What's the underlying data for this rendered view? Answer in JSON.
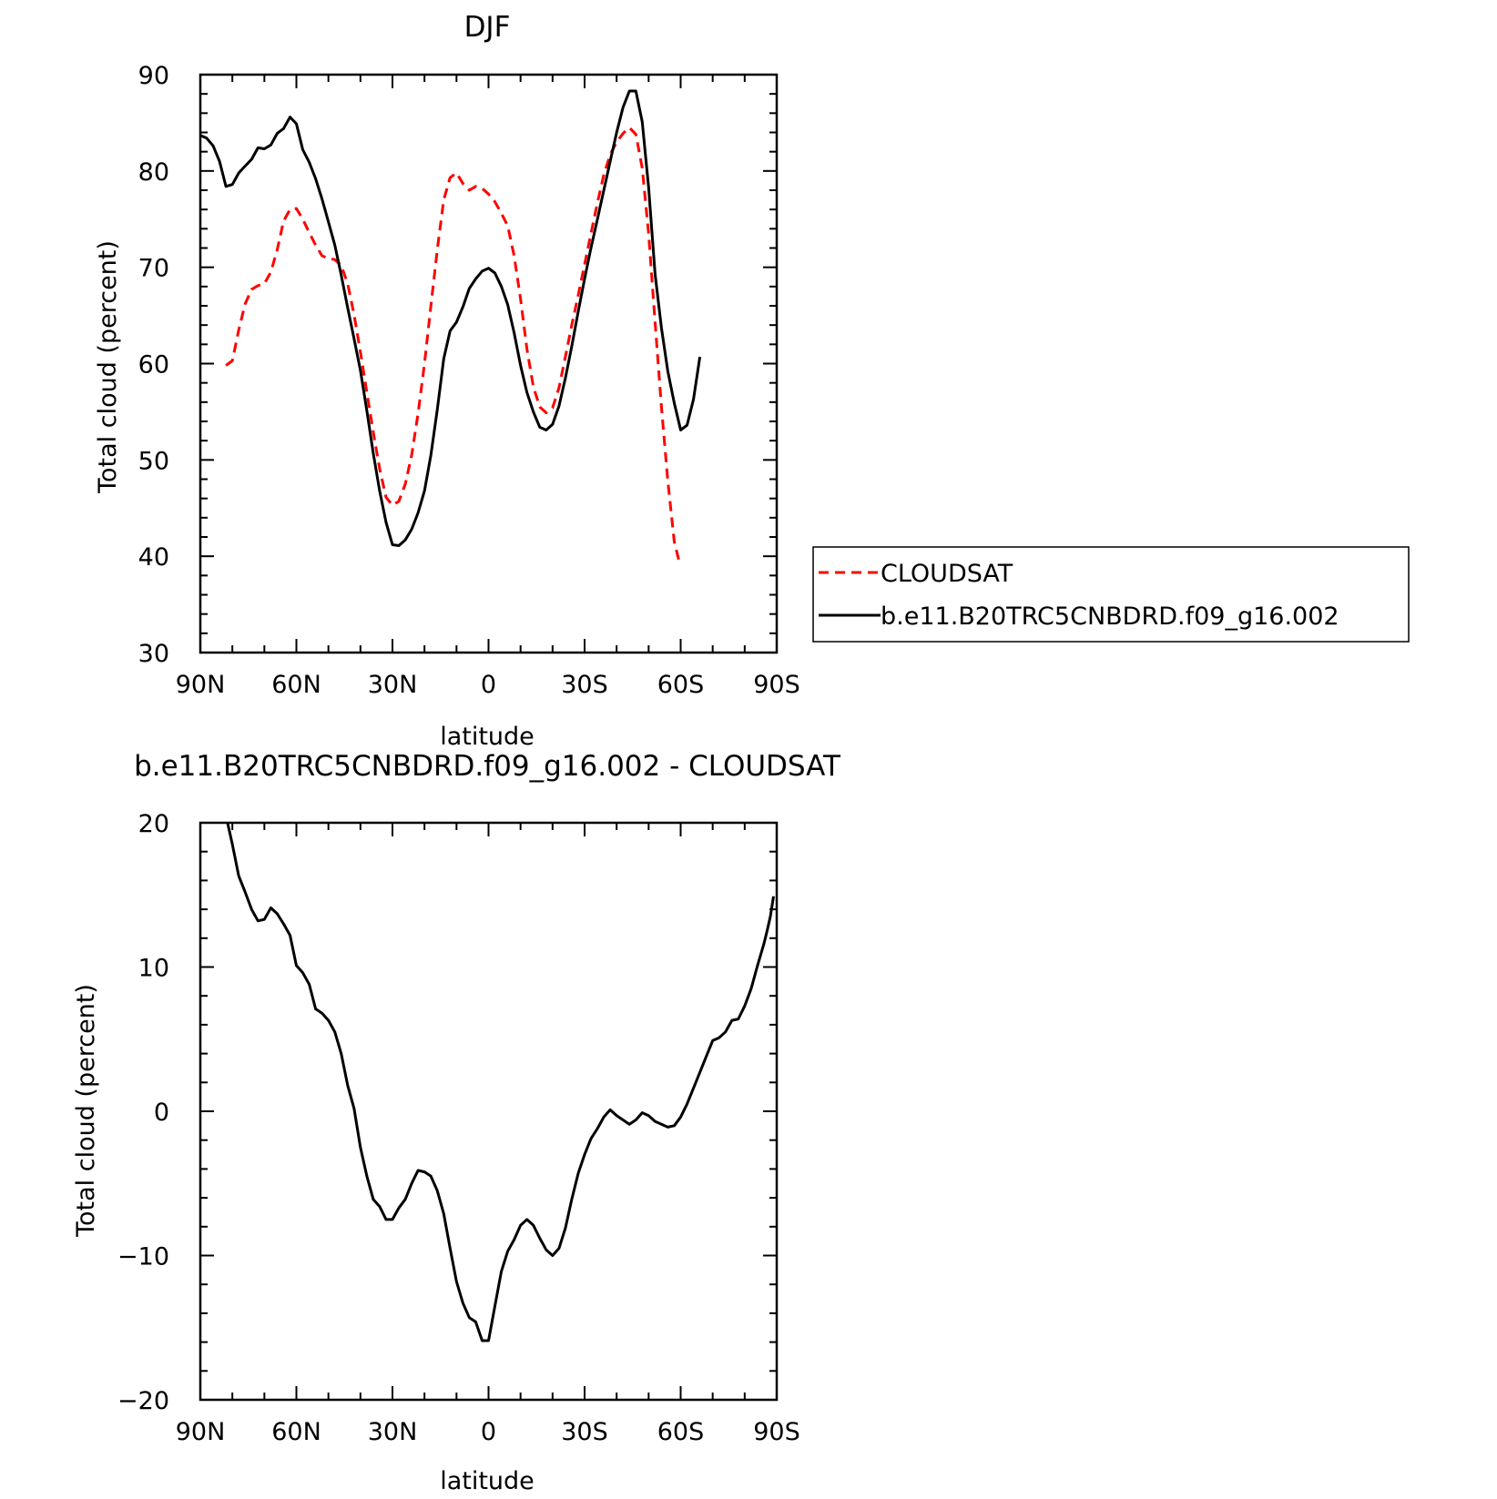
{
  "chart_data": [
    {
      "type": "line",
      "title": "DJF",
      "xlabel": "latitude",
      "ylabel": "Total cloud (percent)",
      "xlim": [
        90,
        -90
      ],
      "ylim": [
        30,
        90
      ],
      "xticks": [
        {
          "value": 90,
          "label": "90N"
        },
        {
          "value": 60,
          "label": "60N"
        },
        {
          "value": 30,
          "label": "30N"
        },
        {
          "value": 0,
          "label": "0"
        },
        {
          "value": -30,
          "label": "30S"
        },
        {
          "value": -60,
          "label": "60S"
        },
        {
          "value": -90,
          "label": "90S"
        }
      ],
      "yticks": [
        30,
        40,
        50,
        60,
        70,
        80,
        90
      ],
      "legend_position": "right",
      "series": [
        {
          "name": "CLOUDSAT",
          "color": "#ff0000",
          "dash": "dashed",
          "points": [
            [
              82,
              59.8
            ],
            [
              80,
              60.3
            ],
            [
              78,
              63.5
            ],
            [
              76,
              66.2
            ],
            [
              74,
              67.7
            ],
            [
              72,
              68.1
            ],
            [
              70,
              68.3
            ],
            [
              68,
              69.5
            ],
            [
              66,
              71.8
            ],
            [
              64,
              74.8
            ],
            [
              62,
              76.0
            ],
            [
              60,
              76.1
            ],
            [
              58,
              75.0
            ],
            [
              56,
              73.6
            ],
            [
              54,
              72.3
            ],
            [
              52,
              71.2
            ],
            [
              50,
              70.9
            ],
            [
              48,
              70.8
            ],
            [
              46,
              70.2
            ],
            [
              44,
              68.3
            ],
            [
              42,
              65.1
            ],
            [
              40,
              61.2
            ],
            [
              38,
              57.0
            ],
            [
              36,
              52.9
            ],
            [
              34,
              49.1
            ],
            [
              32,
              46.1
            ],
            [
              30,
              45.3
            ],
            [
              28,
              45.7
            ],
            [
              26,
              47.5
            ],
            [
              24,
              50.5
            ],
            [
              22,
              54.8
            ],
            [
              20,
              60.0
            ],
            [
              18,
              66.0
            ],
            [
              16,
              71.8
            ],
            [
              14,
              77.0
            ],
            [
              12,
              79.3
            ],
            [
              10,
              79.8
            ],
            [
              8,
              78.7
            ],
            [
              6,
              78.0
            ],
            [
              4,
              78.4
            ],
            [
              2,
              78.2
            ],
            [
              0,
              77.6
            ],
            [
              -2,
              76.8
            ],
            [
              -4,
              75.6
            ],
            [
              -6,
              74.3
            ],
            [
              -8,
              71.2
            ],
            [
              -10,
              66.7
            ],
            [
              -12,
              61.5
            ],
            [
              -14,
              57.6
            ],
            [
              -16,
              55.5
            ],
            [
              -18,
              54.9
            ],
            [
              -20,
              55.4
            ],
            [
              -22,
              57.5
            ],
            [
              -24,
              60.7
            ],
            [
              -26,
              64.0
            ],
            [
              -28,
              67.1
            ],
            [
              -30,
              70.3
            ],
            [
              -32,
              73.5
            ],
            [
              -34,
              76.7
            ],
            [
              -36,
              79.6
            ],
            [
              -38,
              81.7
            ],
            [
              -40,
              83.0
            ],
            [
              -42,
              83.9
            ],
            [
              -44,
              84.5
            ],
            [
              -46,
              83.8
            ],
            [
              -48,
              80.3
            ],
            [
              -50,
              73.5
            ],
            [
              -52,
              64.3
            ],
            [
              -54,
              55.5
            ],
            [
              -56,
              47.8
            ],
            [
              -58,
              41.5
            ],
            [
              -59.5,
              39.5
            ]
          ]
        },
        {
          "name": "b.e11.B20TRC5CNBDRD.f09_g16.002",
          "color": "#000000",
          "dash": "solid",
          "points": [
            [
              90,
              83.7
            ],
            [
              88,
              83.4
            ],
            [
              86,
              82.6
            ],
            [
              84,
              81.0
            ],
            [
              82,
              78.4
            ],
            [
              80,
              78.6
            ],
            [
              78,
              79.8
            ],
            [
              76,
              80.5
            ],
            [
              74,
              81.2
            ],
            [
              72,
              82.4
            ],
            [
              70,
              82.3
            ],
            [
              68,
              82.7
            ],
            [
              66,
              83.9
            ],
            [
              64,
              84.4
            ],
            [
              62,
              85.6
            ],
            [
              60,
              84.9
            ],
            [
              58,
              82.2
            ],
            [
              56,
              80.9
            ],
            [
              54,
              79.2
            ],
            [
              52,
              77.1
            ],
            [
              50,
              74.7
            ],
            [
              48,
              72.3
            ],
            [
              46,
              69.2
            ],
            [
              44,
              65.8
            ],
            [
              42,
              62.6
            ],
            [
              40,
              59.3
            ],
            [
              38,
              55.1
            ],
            [
              36,
              50.7
            ],
            [
              34,
              46.8
            ],
            [
              32,
              43.5
            ],
            [
              30,
              41.2
            ],
            [
              28,
              41.1
            ],
            [
              26,
              41.7
            ],
            [
              24,
              42.8
            ],
            [
              22,
              44.5
            ],
            [
              20,
              46.8
            ],
            [
              18,
              50.5
            ],
            [
              16,
              55.2
            ],
            [
              14,
              60.5
            ],
            [
              12,
              63.4
            ],
            [
              10,
              64.3
            ],
            [
              8,
              65.9
            ],
            [
              6,
              67.8
            ],
            [
              4,
              68.8
            ],
            [
              2,
              69.6
            ],
            [
              0,
              69.9
            ],
            [
              -2,
              69.4
            ],
            [
              -4,
              68.0
            ],
            [
              -6,
              66.1
            ],
            [
              -8,
              63.2
            ],
            [
              -10,
              59.8
            ],
            [
              -12,
              57.0
            ],
            [
              -14,
              55.0
            ],
            [
              -16,
              53.4
            ],
            [
              -18,
              53.1
            ],
            [
              -20,
              53.7
            ],
            [
              -22,
              55.6
            ],
            [
              -24,
              58.5
            ],
            [
              -26,
              61.8
            ],
            [
              -28,
              65.4
            ],
            [
              -30,
              68.8
            ],
            [
              -32,
              72.0
            ],
            [
              -34,
              75.0
            ],
            [
              -36,
              78.0
            ],
            [
              -38,
              81.0
            ],
            [
              -40,
              84.0
            ],
            [
              -42,
              86.6
            ],
            [
              -44,
              88.3
            ],
            [
              -46,
              88.3
            ],
            [
              -48,
              85.1
            ],
            [
              -50,
              78.3
            ],
            [
              -52,
              69.3
            ],
            [
              -54,
              63.7
            ],
            [
              -56,
              59.2
            ],
            [
              -58,
              55.9
            ],
            [
              -60,
              53.1
            ],
            [
              -62,
              53.6
            ],
            [
              -64,
              56.3
            ],
            [
              -66,
              60.7
            ]
          ]
        }
      ]
    },
    {
      "type": "line",
      "title": "b.e11.B20TRC5CNBDRD.f09_g16.002 - CLOUDSAT",
      "xlabel": "latitude",
      "ylabel": "Total cloud (percent)",
      "xlim": [
        90,
        -90
      ],
      "ylim": [
        -20,
        20
      ],
      "xticks": [
        {
          "value": 90,
          "label": "90N"
        },
        {
          "value": 60,
          "label": "60N"
        },
        {
          "value": 30,
          "label": "30N"
        },
        {
          "value": 0,
          "label": "0"
        },
        {
          "value": -30,
          "label": "30S"
        },
        {
          "value": -60,
          "label": "60S"
        },
        {
          "value": -90,
          "label": "90S"
        }
      ],
      "yticks": [
        {
          "value": -20,
          "label": "−20"
        },
        {
          "value": -10,
          "label": "−10"
        },
        {
          "value": 0,
          "label": "0"
        },
        {
          "value": 10,
          "label": "10"
        },
        {
          "value": 20,
          "label": "20"
        }
      ],
      "series": [
        {
          "color": "#000000",
          "dash": "solid",
          "points": [
            [
              81.5,
              20.0
            ],
            [
              80,
              18.5
            ],
            [
              78,
              16.3
            ],
            [
              76,
              15.2
            ],
            [
              74,
              14.0
            ],
            [
              72,
              13.2
            ],
            [
              70,
              13.3
            ],
            [
              68,
              14.1
            ],
            [
              66,
              13.7
            ],
            [
              64,
              13.0
            ],
            [
              62,
              12.2
            ],
            [
              60,
              10.1
            ],
            [
              58,
              9.6
            ],
            [
              56,
              8.8
            ],
            [
              54,
              7.1
            ],
            [
              52,
              6.8
            ],
            [
              50,
              6.3
            ],
            [
              48,
              5.5
            ],
            [
              46,
              4.0
            ],
            [
              44,
              1.8
            ],
            [
              42,
              0.2
            ],
            [
              40,
              -2.5
            ],
            [
              38,
              -4.5
            ],
            [
              36,
              -6.1
            ],
            [
              34,
              -6.6
            ],
            [
              32,
              -7.5
            ],
            [
              30,
              -7.5
            ],
            [
              28,
              -6.7
            ],
            [
              26,
              -6.1
            ],
            [
              24,
              -5.0
            ],
            [
              22,
              -4.1
            ],
            [
              20,
              -4.2
            ],
            [
              18,
              -4.5
            ],
            [
              16,
              -5.5
            ],
            [
              14,
              -7.1
            ],
            [
              12,
              -9.5
            ],
            [
              10,
              -11.8
            ],
            [
              8,
              -13.3
            ],
            [
              6,
              -14.3
            ],
            [
              4,
              -14.6
            ],
            [
              2,
              -15.9
            ],
            [
              0,
              -15.9
            ],
            [
              -2,
              -13.5
            ],
            [
              -4,
              -11.1
            ],
            [
              -6,
              -9.7
            ],
            [
              -8,
              -8.9
            ],
            [
              -10,
              -7.9
            ],
            [
              -12,
              -7.5
            ],
            [
              -14,
              -7.9
            ],
            [
              -16,
              -8.8
            ],
            [
              -18,
              -9.6
            ],
            [
              -20,
              -10.0
            ],
            [
              -22,
              -9.5
            ],
            [
              -24,
              -8.1
            ],
            [
              -26,
              -6.1
            ],
            [
              -28,
              -4.3
            ],
            [
              -30,
              -3.0
            ],
            [
              -32,
              -1.9
            ],
            [
              -34,
              -1.2
            ],
            [
              -36,
              -0.4
            ],
            [
              -38,
              0.1
            ],
            [
              -40,
              -0.3
            ],
            [
              -42,
              -0.6
            ],
            [
              -44,
              -0.9
            ],
            [
              -46,
              -0.6
            ],
            [
              -48,
              -0.1
            ],
            [
              -50,
              -0.3
            ],
            [
              -52,
              -0.7
            ],
            [
              -54,
              -0.9
            ],
            [
              -56,
              -1.1
            ],
            [
              -58,
              -1.0
            ],
            [
              -60,
              -0.4
            ],
            [
              -62,
              0.5
            ],
            [
              -64,
              1.6
            ],
            [
              -66,
              2.7
            ],
            [
              -68,
              3.8
            ],
            [
              -70,
              4.9
            ],
            [
              -72,
              5.1
            ],
            [
              -74,
              5.5
            ],
            [
              -76,
              6.3
            ],
            [
              -78,
              6.4
            ],
            [
              -80,
              7.3
            ],
            [
              -82,
              8.5
            ],
            [
              -84,
              10.1
            ],
            [
              -86,
              11.6
            ],
            [
              -87,
              12.5
            ],
            [
              -88,
              13.5
            ],
            [
              -89,
              14.9
            ]
          ]
        }
      ]
    }
  ]
}
